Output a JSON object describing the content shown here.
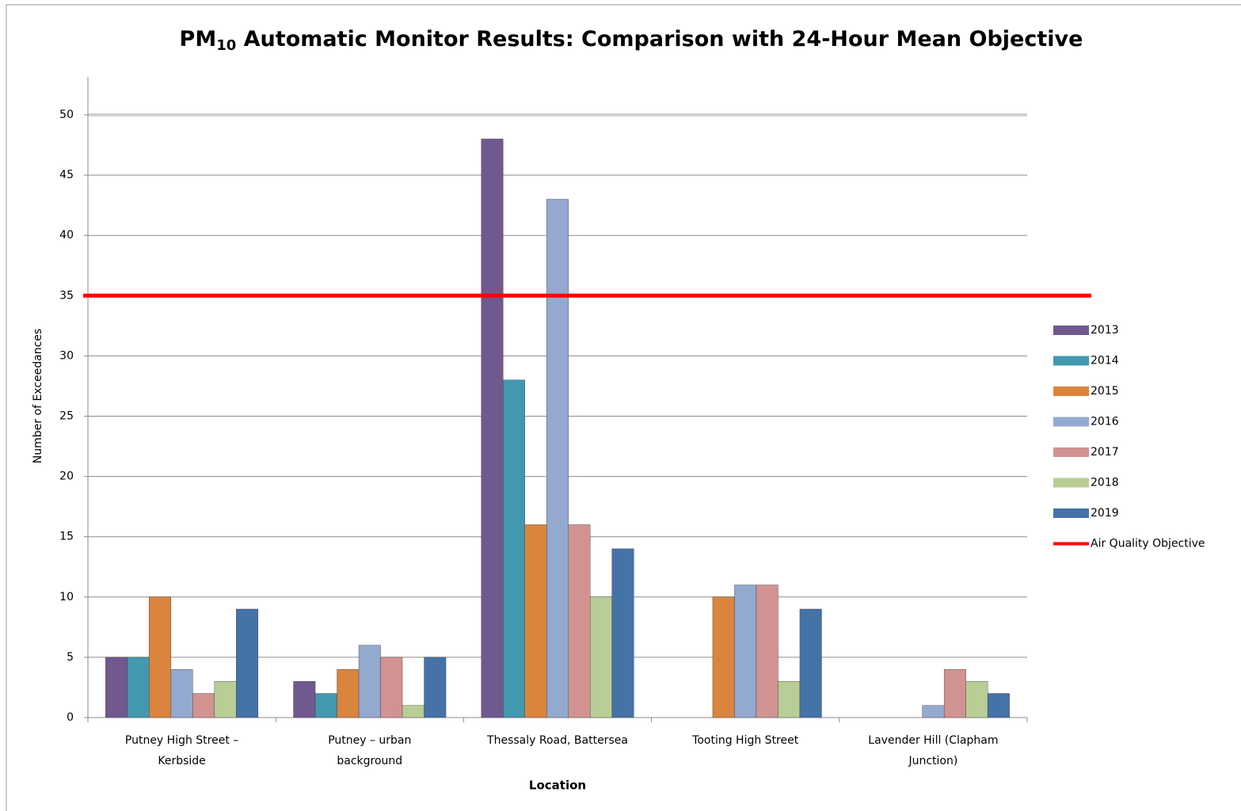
{
  "chart_data": {
    "type": "bar",
    "title": [
      "PM",
      "10",
      " Automatic Monitor Results: Comparison  with 24-Hour Mean Objective"
    ],
    "x_label": "Location",
    "y_label": "Number of Exceedances",
    "categories": [
      [
        "Putney High Street –",
        "Kerbside"
      ],
      [
        "Putney – urban",
        "background"
      ],
      [
        "Thessaly Road, Battersea"
      ],
      [
        "Tooting High Street"
      ],
      [
        "Lavender Hill (Clapham",
        "Junction)"
      ]
    ],
    "series": [
      {
        "name": "2013",
        "color": "#71588f",
        "values": [
          5,
          3,
          48,
          null,
          null
        ]
      },
      {
        "name": "2014",
        "color": "#4198af",
        "values": [
          5,
          2,
          28,
          null,
          null
        ]
      },
      {
        "name": "2015",
        "color": "#db843d",
        "values": [
          10,
          4,
          16,
          10,
          null
        ]
      },
      {
        "name": "2016",
        "color": "#93a9cf",
        "values": [
          4,
          6,
          43,
          11,
          1
        ]
      },
      {
        "name": "2017",
        "color": "#d19392",
        "values": [
          2,
          5,
          16,
          11,
          4
        ]
      },
      {
        "name": "2018",
        "color": "#b9cd96",
        "values": [
          3,
          1,
          10,
          3,
          3
        ]
      },
      {
        "name": "2019",
        "color": "#4572a7",
        "values": [
          9,
          5,
          14,
          9,
          2
        ]
      }
    ],
    "reference_line": {
      "name": "Air Quality Objective",
      "value": 35,
      "color": "#ff0000"
    },
    "ylim": [
      0,
      50
    ],
    "yticks": [
      0,
      5,
      10,
      15,
      20,
      25,
      30,
      35,
      40,
      45,
      50
    ],
    "grid": true,
    "legend": "right"
  }
}
